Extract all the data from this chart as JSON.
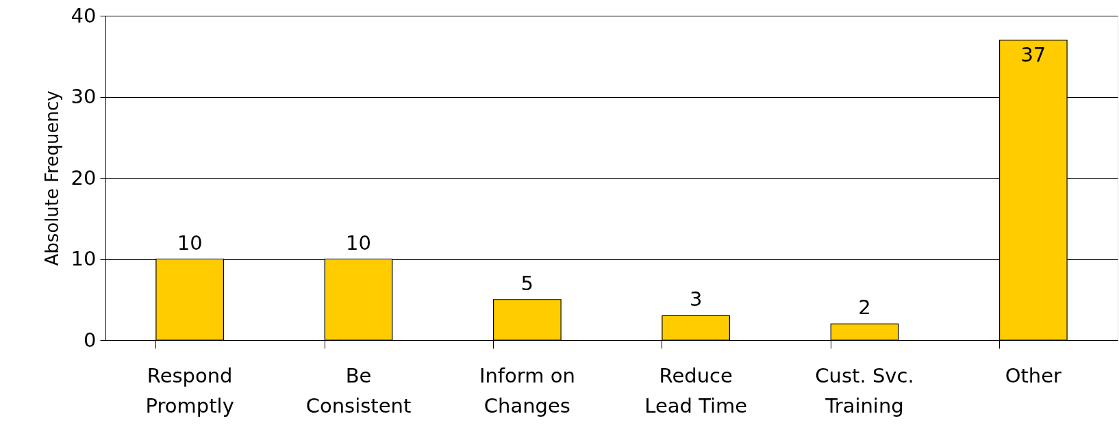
{
  "chart_data": {
    "type": "bar",
    "ylabel": "Absolute Frequency",
    "categories": [
      "Respond Promptly",
      "Be Consistent",
      "Inform on Changes",
      "Reduce Lead Time",
      "Cust. Svc. Training",
      "Other"
    ],
    "values": [
      10,
      10,
      5,
      3,
      2,
      37
    ],
    "color": "#ffcc00",
    "ylim": [
      0,
      40
    ],
    "yticks": [
      0,
      10,
      20,
      30,
      40
    ],
    "grid": "y",
    "data_labels": true
  }
}
